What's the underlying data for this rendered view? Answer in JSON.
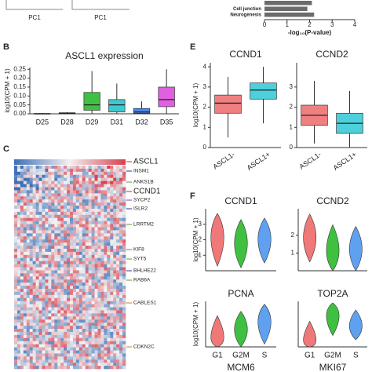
{
  "chart_data": [
    {
      "type": "hbar",
      "pc_axis_labels": [
        "PC1",
        "PC1"
      ],
      "categories": [
        null,
        "Cell junction",
        "Neurogenesis"
      ],
      "values": [
        2.1,
        1.9,
        2.2
      ],
      "color": "#6b6b6b",
      "xlim": [
        0,
        4
      ],
      "xticks": [
        0,
        1,
        2,
        3,
        4
      ],
      "xlabel": "-log₁₀(P-value)"
    },
    {
      "type": "box",
      "panel_label": "B",
      "title": "ASCL1 expression",
      "ylabel": "log10(CPM + 1)",
      "categories": [
        "D25",
        "D28",
        "D29",
        "D31",
        "D32",
        "D35"
      ],
      "colors": [
        "#f08080",
        "#b8b030",
        "#40c040",
        "#40c8d0",
        "#4a86f0",
        "#e060e0"
      ],
      "boxes": [
        {
          "low": 0,
          "q1": 0,
          "median": 0,
          "q3": 0.002,
          "high": 0.005
        },
        {
          "low": 0,
          "q1": 0,
          "median": 0.002,
          "q3": 0.006,
          "high": 0.01
        },
        {
          "low": 0,
          "q1": 0.02,
          "median": 0.05,
          "q3": 0.12,
          "high": 0.24
        },
        {
          "low": 0,
          "q1": 0.01,
          "median": 0.05,
          "q3": 0.08,
          "high": 0.17
        },
        {
          "low": 0,
          "q1": 0.003,
          "median": 0.01,
          "q3": 0.03,
          "high": 0.07
        },
        {
          "low": 0,
          "q1": 0.04,
          "median": 0.08,
          "q3": 0.15,
          "high": 0.25
        }
      ],
      "ylim": [
        0,
        0.26
      ],
      "yticks": [
        {
          "value": 0,
          "label": "0.00"
        },
        0.05,
        {
          "value": 0.1,
          "label": "0.10"
        },
        0.15,
        {
          "value": 0.2,
          "label": "0.20"
        },
        0.25
      ]
    },
    {
      "type": "heatmap",
      "panel_label": "C",
      "genes": [
        "ASCL1",
        "INSM1",
        "ANKS1B",
        "CCND1",
        "SYCP2",
        "ISLR2",
        "LRRTM2",
        "KIF8",
        "SYT5",
        "BHLHE22",
        "RAB6A",
        "CABLES1",
        "CDKN2C"
      ],
      "gene_colors": [
        "#e0202a",
        "#3030a0",
        "#5a9a30",
        "#e0202a",
        "#8040a0",
        "#3030a0",
        "#5a9a30",
        "#5a9a30",
        "#5a9a30",
        "#3030a0",
        "#5a9a30",
        "#c08030",
        "#c08030"
      ]
    },
    {
      "type": "box_pair",
      "panel_label": "E",
      "ylabel": "log10(CPM + 1)",
      "categories": [
        "ASCL1-",
        "ASCL1+"
      ],
      "colors": [
        "#f08080",
        "#4dd0dc"
      ],
      "panels": [
        {
          "title": "CCND1",
          "ylim": [
            0,
            4.2
          ],
          "yticks": [
            0,
            1,
            2,
            3,
            4
          ],
          "boxes": [
            {
              "low": 0.5,
              "q1": 1.7,
              "median": 2.2,
              "q3": 2.6,
              "high": 3.5
            },
            {
              "low": 1.2,
              "q1": 2.4,
              "median": 2.85,
              "q3": 3.2,
              "high": 4
            }
          ]
        },
        {
          "title": "CCND2",
          "ylim": [
            0,
            4.2
          ],
          "yticks": [
            0,
            1,
            2,
            3
          ],
          "boxes": [
            {
              "low": 0.2,
              "q1": 1.1,
              "median": 1.6,
              "q3": 2.1,
              "high": 3.3
            },
            {
              "low": 0,
              "q1": 0.7,
              "median": 1.2,
              "q3": 1.7,
              "high": 2.8
            }
          ]
        }
      ]
    },
    {
      "type": "violin",
      "panel_label": "F",
      "ylabel": "log10(CPM + 1)",
      "categories": [
        "G1",
        "G2M",
        "S"
      ],
      "colors": [
        "#f07878",
        "#40c040",
        "#5fa0f0"
      ],
      "panels": [
        {
          "title": "CCND1",
          "ylim": [
            0,
            4
          ],
          "yticks": [
            1,
            2,
            3
          ],
          "violins": [
            {
              "min": 0.3,
              "mode": 2.3,
              "max": 3.7
            },
            {
              "min": 0.2,
              "mode": 1.8,
              "max": 3.3
            },
            {
              "min": 0.5,
              "mode": 2.1,
              "max": 3.4
            }
          ]
        },
        {
          "title": "CCND2",
          "ylim": [
            0,
            3.5
          ],
          "yticks": [
            1,
            2
          ],
          "violins": [
            {
              "min": 0.5,
              "mode": 1.9,
              "max": 3.2
            },
            {
              "min": 0,
              "mode": 1.0,
              "max": 2.6
            },
            {
              "min": 0,
              "mode": 1.2,
              "max": 2.5
            }
          ]
        },
        {
          "title": "PCNA",
          "ylim": [
            0,
            3.2
          ],
          "yticks": [],
          "violins": [
            {
              "min": 0,
              "mode": 0.3,
              "max": 2.2
            },
            {
              "min": 0,
              "mode": 1.2,
              "max": 2.5
            },
            {
              "min": 0.2,
              "mode": 1.9,
              "max": 3.0
            }
          ]
        },
        {
          "title": "TOP2A",
          "ylim": [
            0,
            3.2
          ],
          "yticks": [],
          "violins": [
            {
              "min": 0,
              "mode": 0.1,
              "max": 1.8
            },
            {
              "min": 0.8,
              "mode": 2.4,
              "max": 3.1
            },
            {
              "min": 0.5,
              "mode": 1.4,
              "max": 2.6
            }
          ]
        }
      ],
      "cut_titles": [
        "MCM6",
        "MKI67"
      ]
    }
  ]
}
